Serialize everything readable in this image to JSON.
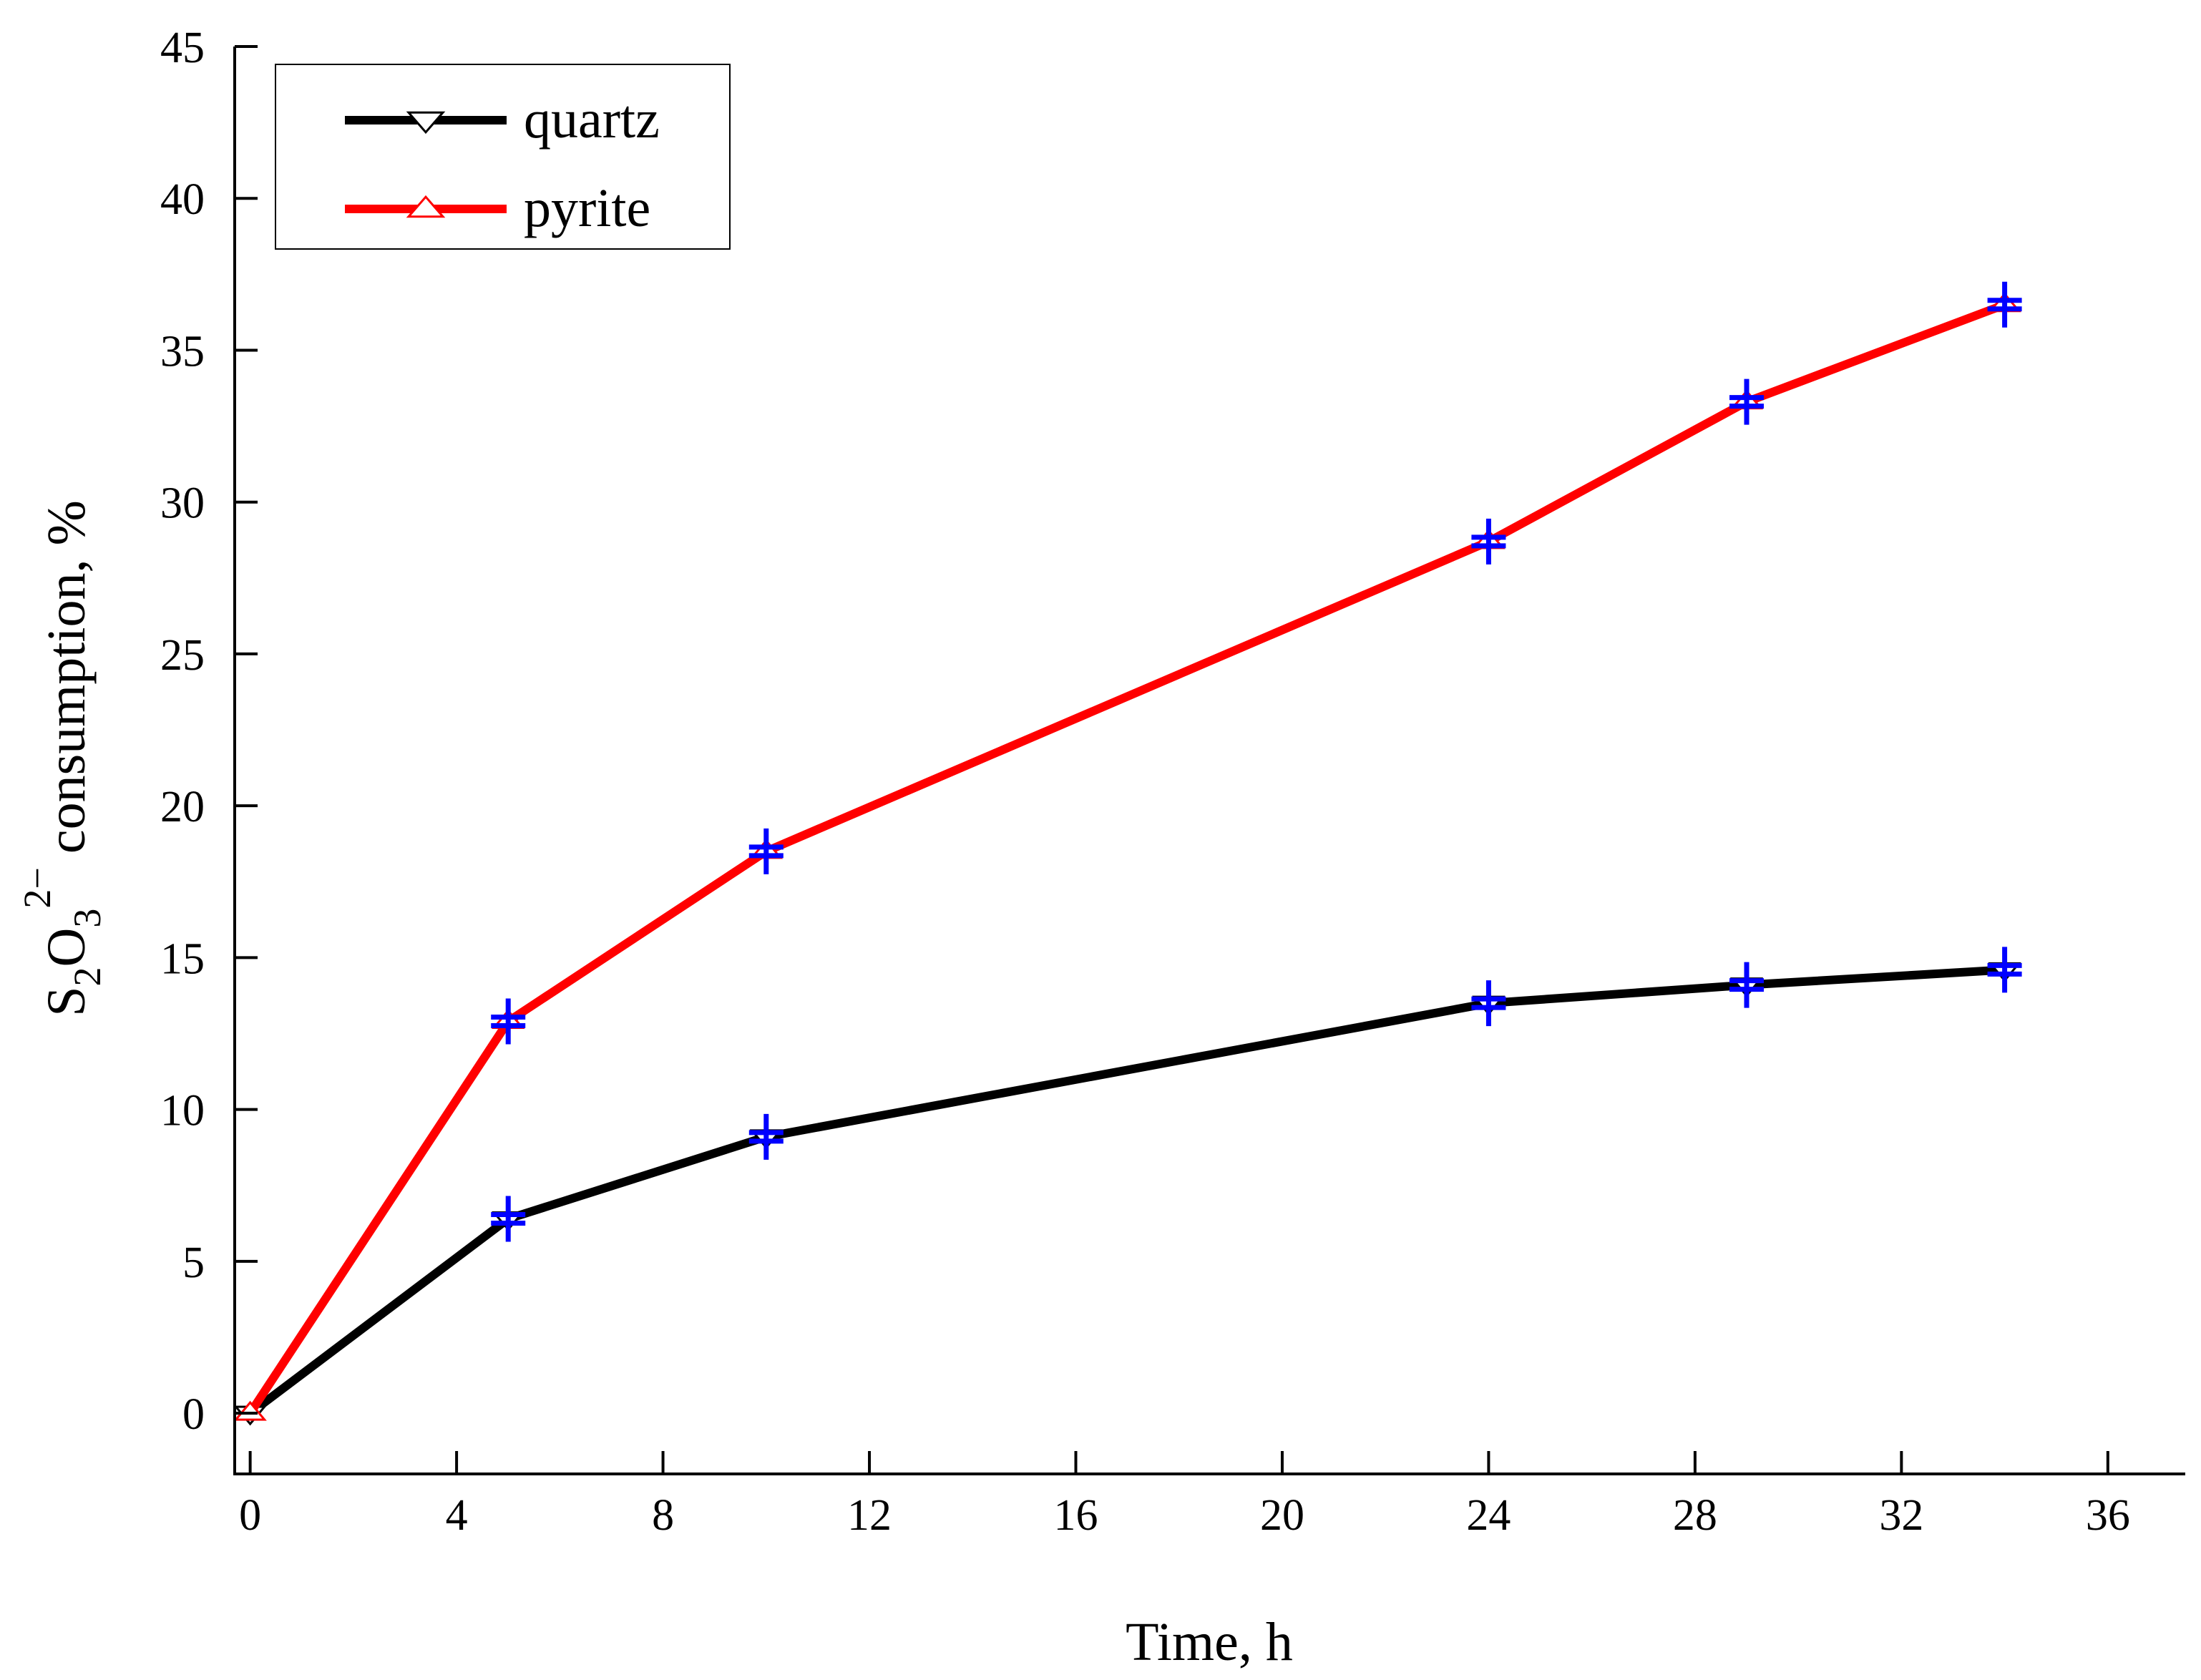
{
  "chart_data": {
    "type": "line",
    "xlabel": "Time, h",
    "ylabel": {
      "species_S": "S",
      "species_S_sub": "2",
      "species_O": "O",
      "species_O_sub": "3",
      "charge": "2−",
      "text": " consumption, %"
    },
    "xlim": [
      -0.3,
      37.5
    ],
    "ylim": [
      -2,
      45
    ],
    "xticks": [
      0,
      4,
      8,
      12,
      16,
      20,
      24,
      28,
      32,
      36
    ],
    "yticks": [
      0,
      5,
      10,
      15,
      20,
      25,
      30,
      35,
      40,
      45
    ],
    "x": [
      0,
      5,
      10,
      24,
      29,
      34
    ],
    "legend_position": "top-left",
    "series": [
      {
        "name": "quartz",
        "color": "#000000",
        "marker": "triangle-down",
        "values": [
          0,
          6.4,
          9.1,
          13.5,
          14.1,
          14.6
        ]
      },
      {
        "name": "pyrite",
        "color": "#ff0000",
        "marker": "triangle-up",
        "values": [
          0,
          12.9,
          18.5,
          28.7,
          33.3,
          36.5
        ]
      }
    ],
    "error_marker_color": "#0000ff"
  }
}
